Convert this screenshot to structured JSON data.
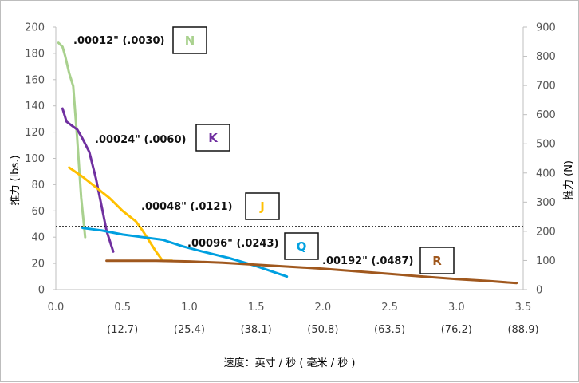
{
  "chart_data": {
    "type": "line",
    "title": "",
    "xlabel": "速度：英寸 / 秒 ( 毫米 / 秒 )",
    "ylabel_left": "推力 (lbs.)",
    "ylabel_right": "推力 (N)",
    "xlim": [
      0,
      3.5
    ],
    "ylim_left": [
      0,
      200
    ],
    "ylim_right": [
      0,
      900
    ],
    "x_ticks": [
      "0.0",
      "0.5",
      "1.0",
      "1.5",
      "2.0",
      "2.5",
      "3.0",
      "3.5"
    ],
    "x_ticks_mm": [
      "(12.7)",
      "(25.4)",
      "(38.1)",
      "(50.8)",
      "(63.5)",
      "(76.2)",
      "(88.9)"
    ],
    "y_ticks_left": [
      "0",
      "20",
      "40",
      "60",
      "80",
      "100",
      "120",
      "140",
      "160",
      "180",
      "200"
    ],
    "y_ticks_right": [
      "0",
      "100",
      "200",
      "300",
      "400",
      "500",
      "600",
      "700",
      "800",
      "900"
    ],
    "reference_line": {
      "y": 48,
      "style": "dotted"
    },
    "grid": false,
    "series": [
      {
        "name": "N",
        "annotation": ".00012\" (.0030)",
        "color": "#a9d18e",
        "x": [
          0.02,
          0.05,
          0.07,
          0.1,
          0.13,
          0.16,
          0.19,
          0.22
        ],
        "y": [
          188,
          185,
          178,
          165,
          155,
          115,
          70,
          40
        ]
      },
      {
        "name": "K",
        "annotation": ".00024\" (.0060)",
        "color": "#7030a0",
        "x": [
          0.05,
          0.08,
          0.12,
          0.16,
          0.2,
          0.25,
          0.3,
          0.35,
          0.38,
          0.43
        ],
        "y": [
          138,
          128,
          125,
          122,
          115,
          105,
          85,
          60,
          45,
          29
        ]
      },
      {
        "name": "J",
        "annotation": ".00048\" (.0121)",
        "color": "#ffc000",
        "x": [
          0.1,
          0.2,
          0.3,
          0.4,
          0.5,
          0.6,
          0.65,
          0.7,
          0.75,
          0.8,
          0.87
        ],
        "y": [
          93,
          86,
          78,
          70,
          60,
          52,
          45,
          37,
          29,
          22,
          22
        ]
      },
      {
        "name": "Q",
        "annotation": ".00096\" (.0243)",
        "color": "#00a0e0",
        "x": [
          0.2,
          0.35,
          0.5,
          0.65,
          0.8,
          0.95,
          1.1,
          1.3,
          1.5,
          1.73
        ],
        "y": [
          47,
          45,
          42,
          40,
          38,
          33,
          29,
          24,
          18,
          10
        ]
      },
      {
        "name": "R",
        "annotation": ".00192\" (.0487)",
        "color": "#a0581e",
        "x": [
          0.38,
          0.75,
          1.0,
          1.25,
          1.5,
          1.75,
          2.0,
          2.25,
          2.5,
          2.75,
          3.0,
          3.25,
          3.45
        ],
        "y": [
          22,
          22,
          21.5,
          20.5,
          19,
          17.5,
          16,
          14,
          12,
          10,
          8,
          6.5,
          5
        ]
      }
    ]
  }
}
